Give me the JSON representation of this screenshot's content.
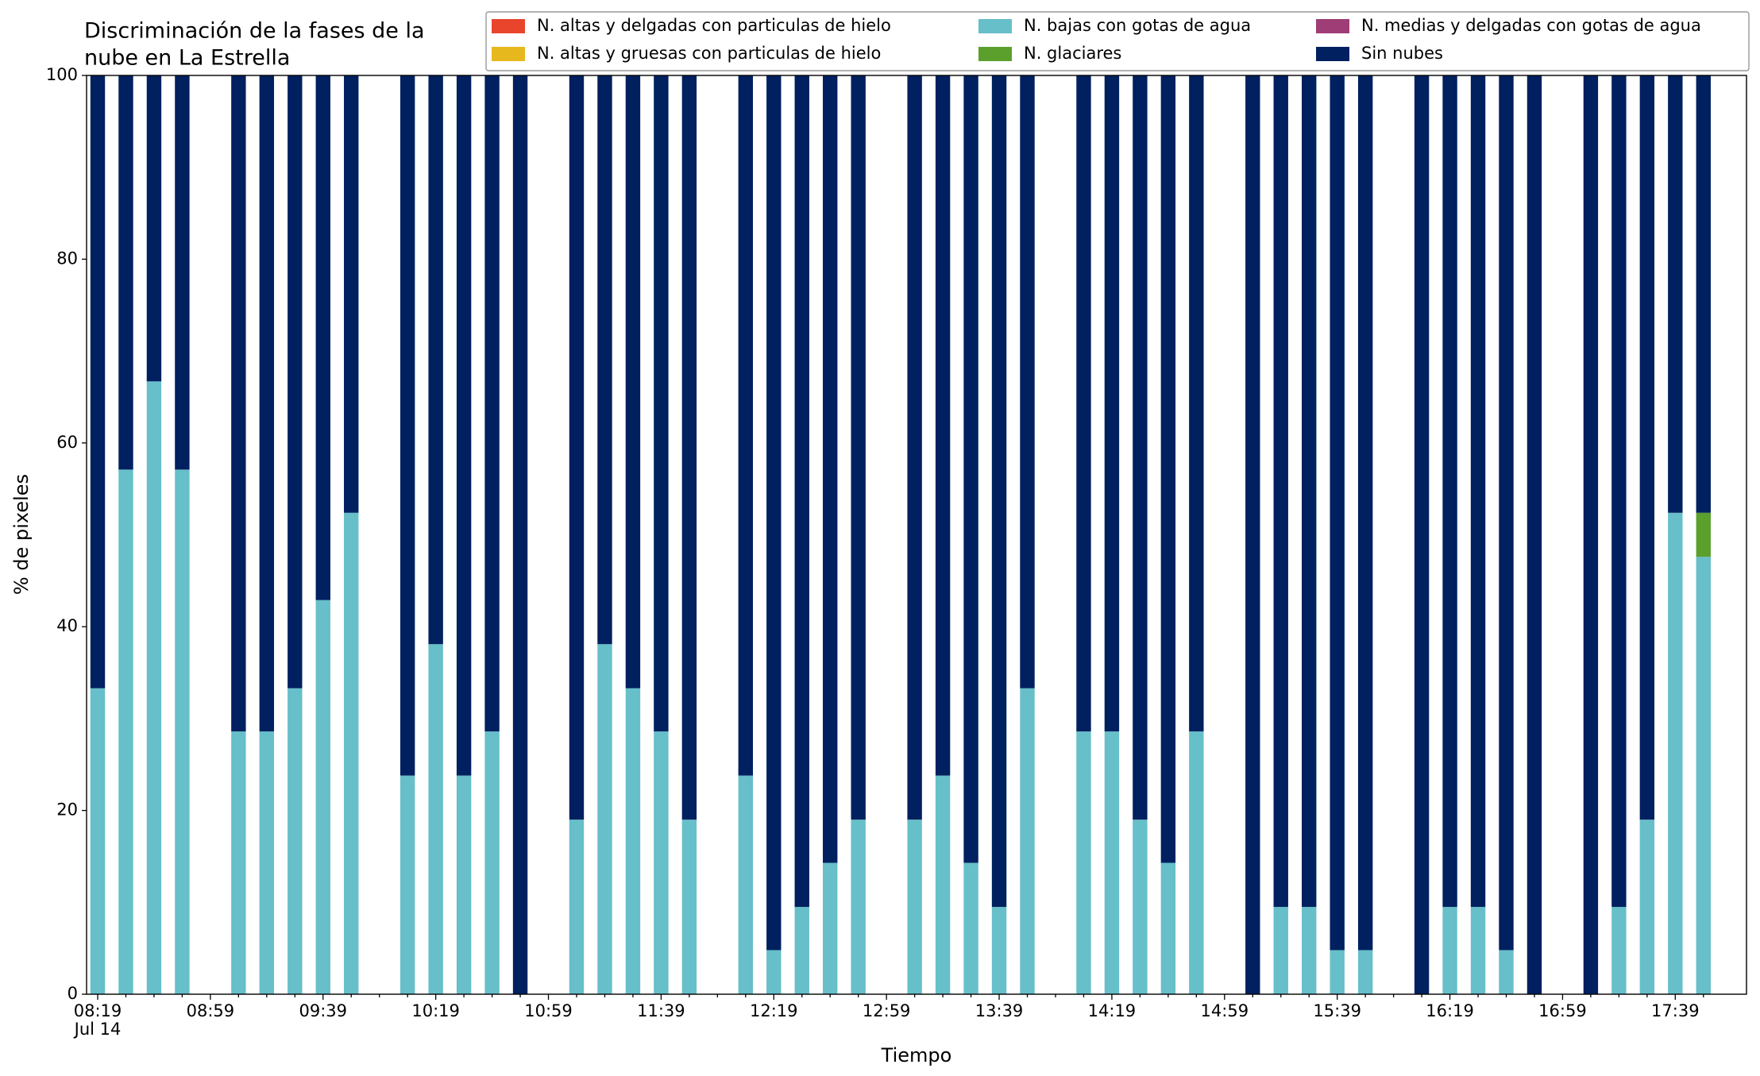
{
  "chart_data": {
    "type": "stacked_bar",
    "title": [
      "Discriminación de la fases de la",
      "nube en La Estrella"
    ],
    "xlabel": "Tiempo",
    "ylabel": "% de pixeles",
    "xdate": "Jul 14",
    "ylim": [
      0,
      100
    ],
    "yticks": [
      0,
      20,
      40,
      60,
      80,
      100
    ],
    "legend": "top-right",
    "categories": [
      "08:19",
      null,
      null,
      null,
      "08:59",
      null,
      null,
      null,
      "09:39",
      null,
      null,
      null,
      "10:19",
      null,
      null,
      null,
      "10:59",
      null,
      null,
      null,
      "11:39",
      null,
      null,
      null,
      "12:19",
      null,
      null,
      null,
      "12:59",
      null,
      null,
      null,
      "13:39",
      null,
      null,
      null,
      "14:19",
      null,
      null,
      null,
      "14:59",
      null,
      null,
      null,
      "15:39",
      null,
      null,
      null,
      "16:19",
      null,
      null,
      null,
      "16:59",
      null,
      null,
      null,
      "17:39",
      null
    ],
    "series": [
      {
        "name": "N. altas y delgadas con particulas de hielo",
        "color": "#e8452c",
        "values": [
          0,
          0,
          0,
          0,
          null,
          0,
          0,
          0,
          0,
          0,
          null,
          0,
          0,
          0,
          0,
          0,
          null,
          0,
          0,
          0,
          0,
          0,
          null,
          0,
          0,
          0,
          0,
          0,
          null,
          0,
          0,
          0,
          0,
          0,
          null,
          0,
          0,
          0,
          0,
          0,
          null,
          0,
          0,
          0,
          0,
          0,
          null,
          0,
          0,
          0,
          0,
          0,
          null,
          0,
          0,
          0,
          0,
          0
        ]
      },
      {
        "name": "N. altas y gruesas con particulas de hielo",
        "color": "#e6b81e",
        "values": [
          0,
          0,
          0,
          0,
          null,
          0,
          0,
          0,
          0,
          0,
          null,
          0,
          0,
          0,
          0,
          0,
          null,
          0,
          0,
          0,
          0,
          0,
          null,
          0,
          0,
          0,
          0,
          0,
          null,
          0,
          0,
          0,
          0,
          0,
          null,
          0,
          0,
          0,
          0,
          0,
          null,
          0,
          0,
          0,
          0,
          0,
          null,
          0,
          0,
          0,
          0,
          0,
          null,
          0,
          0,
          0,
          0,
          0
        ]
      },
      {
        "name": "N. bajas con gotas de agua",
        "color": "#66bfc9",
        "values": [
          33.3,
          57.1,
          66.7,
          57.1,
          null,
          28.6,
          28.6,
          33.3,
          42.9,
          52.4,
          null,
          23.8,
          38.1,
          23.8,
          28.6,
          0,
          null,
          19.0,
          38.1,
          33.3,
          28.6,
          19.0,
          null,
          23.8,
          4.8,
          9.5,
          14.3,
          19.0,
          null,
          19.0,
          23.8,
          14.3,
          9.5,
          33.3,
          null,
          28.6,
          28.6,
          19.0,
          14.3,
          28.6,
          null,
          0,
          9.5,
          9.5,
          4.8,
          4.8,
          null,
          0,
          9.5,
          9.5,
          4.8,
          0,
          null,
          0,
          9.5,
          19.0,
          52.4,
          47.6
        ]
      },
      {
        "name": "N. glaciares",
        "color": "#5b9f2d",
        "values": [
          0,
          0,
          0,
          0,
          null,
          0,
          0,
          0,
          0,
          0,
          null,
          0,
          0,
          0,
          0,
          0,
          null,
          0,
          0,
          0,
          0,
          0,
          null,
          0,
          0,
          0,
          0,
          0,
          null,
          0,
          0,
          0,
          0,
          0,
          null,
          0,
          0,
          0,
          0,
          0,
          null,
          0,
          0,
          0,
          0,
          0,
          null,
          0,
          0,
          0,
          0,
          0,
          null,
          0,
          0,
          0,
          0,
          4.8
        ]
      },
      {
        "name": "N. medias y delgadas con gotas de agua",
        "color": "#9e3d76",
        "values": [
          0,
          0,
          0,
          0,
          null,
          0,
          0,
          0,
          0,
          0,
          null,
          0,
          0,
          0,
          0,
          0,
          null,
          0,
          0,
          0,
          0,
          0,
          null,
          0,
          0,
          0,
          0,
          0,
          null,
          0,
          0,
          0,
          0,
          0,
          null,
          0,
          0,
          0,
          0,
          0,
          null,
          0,
          0,
          0,
          0,
          0,
          null,
          0,
          0,
          0,
          0,
          0,
          null,
          0,
          0,
          0,
          0,
          0
        ]
      },
      {
        "name": "Sin nubes",
        "color": "#00205f",
        "values": [
          66.7,
          42.9,
          33.3,
          42.9,
          null,
          71.4,
          71.4,
          66.7,
          57.1,
          47.6,
          null,
          76.2,
          61.9,
          76.2,
          71.4,
          100,
          null,
          81.0,
          61.9,
          66.7,
          71.4,
          81.0,
          null,
          76.2,
          95.2,
          90.5,
          85.7,
          81.0,
          null,
          81.0,
          76.2,
          85.7,
          90.5,
          66.7,
          null,
          71.4,
          71.4,
          81.0,
          85.7,
          71.4,
          null,
          100,
          90.5,
          90.5,
          95.2,
          95.2,
          null,
          100,
          90.5,
          90.5,
          95.2,
          100,
          null,
          100,
          90.5,
          81.0,
          47.6,
          47.6
        ]
      }
    ]
  }
}
